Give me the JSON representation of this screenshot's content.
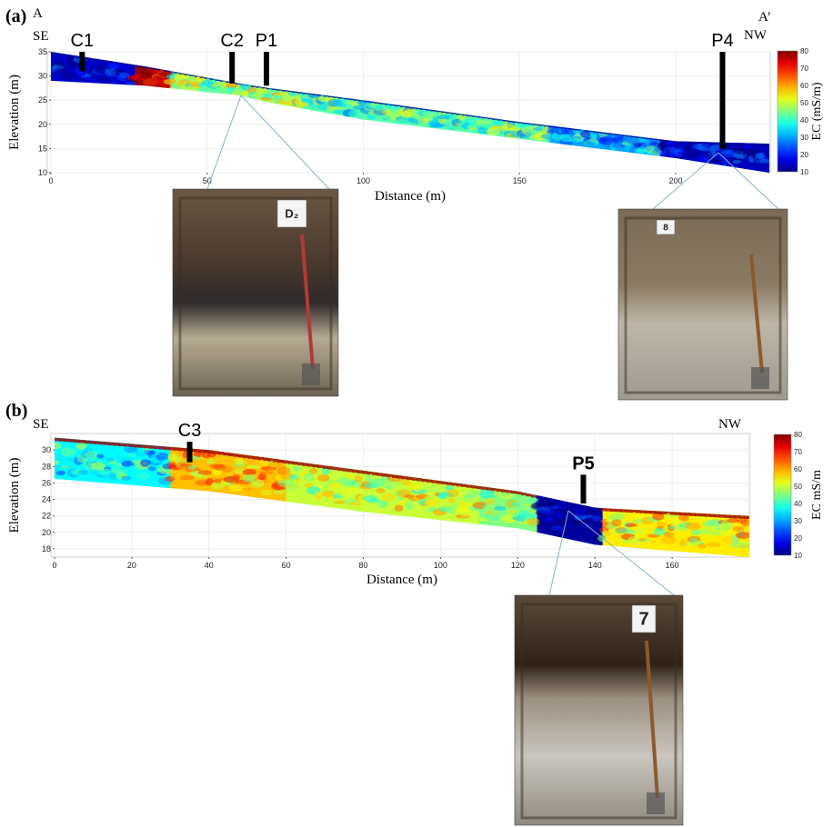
{
  "chart_data": [
    {
      "type": "heatmap",
      "panel_label": "(a)",
      "xlabel": "Distance (m)",
      "ylabel": "Elevation (m)",
      "xlim": [
        0,
        230
      ],
      "ylim": [
        10,
        35
      ],
      "xticks": [
        0,
        50,
        100,
        150,
        200
      ],
      "yticks": [
        10,
        15,
        20,
        25,
        30,
        35
      ],
      "direction_labels": {
        "start": "A",
        "start_dir": "SE",
        "end": "A’",
        "end_dir": "NW"
      },
      "surface_profile": {
        "x": [
          0,
          30,
          60,
          70,
          100,
          150,
          200,
          230
        ],
        "top": [
          35,
          32,
          28.5,
          27.5,
          25,
          20.5,
          16.5,
          16
        ],
        "bottom": [
          29,
          28,
          26,
          24.5,
          21,
          17,
          13,
          10
        ]
      },
      "colorbar": {
        "label": "EC (mS/m)",
        "min": 10,
        "max": 80,
        "ticks": [
          10,
          20,
          30,
          40,
          50,
          60,
          70,
          80
        ]
      },
      "markers": [
        {
          "label": "C1",
          "x": 10,
          "y_top": 35,
          "y_bottom": 31
        },
        {
          "label": "C2",
          "x": 58,
          "y_top": 35,
          "y_bottom": 28.5
        },
        {
          "label": "P1",
          "x": 69,
          "y_top": 35,
          "y_bottom": 28
        },
        {
          "label": "P4",
          "x": 215,
          "y_top": 35,
          "y_bottom": 15
        }
      ],
      "ec_zones": [
        {
          "x0": 0,
          "x1": 27,
          "value": 15
        },
        {
          "x0": 27,
          "x1": 38,
          "value": 78
        },
        {
          "x0": 38,
          "x1": 80,
          "value": 48
        },
        {
          "x0": 80,
          "x1": 160,
          "value": 42
        },
        {
          "x0": 160,
          "x1": 195,
          "value": 30
        },
        {
          "x0": 195,
          "x1": 230,
          "value": 14
        }
      ],
      "photos": [
        {
          "sign": "D₂"
        },
        {
          "sign": "8"
        }
      ]
    },
    {
      "type": "heatmap",
      "panel_label": "(b)",
      "xlabel": "Distance (m)",
      "ylabel": "Elevation (m)",
      "xlim": [
        0,
        180
      ],
      "ylim": [
        17,
        32
      ],
      "xticks": [
        0,
        20,
        40,
        60,
        80,
        100,
        120,
        140,
        160
      ],
      "yticks": [
        18,
        20,
        22,
        24,
        26,
        28,
        30
      ],
      "direction_labels": {
        "start_dir": "SE",
        "end_dir": "NW"
      },
      "surface_profile": {
        "x": [
          0,
          40,
          80,
          120,
          140,
          180
        ],
        "top": [
          31.5,
          30,
          27.5,
          25,
          23,
          22
        ],
        "bottom": [
          26.5,
          25,
          22.5,
          20.5,
          18.5,
          17
        ]
      },
      "colorbar": {
        "label": "EC mS/m",
        "min": 10,
        "max": 80,
        "ticks": [
          10,
          20,
          30,
          40,
          50,
          60,
          70,
          80
        ]
      },
      "markers": [
        {
          "label": "C3",
          "x": 35,
          "y_top": 31,
          "y_bottom": 28.5
        },
        {
          "label": "P5",
          "x": 137,
          "y_top": 27,
          "y_bottom": 23.5
        }
      ],
      "ec_zones": [
        {
          "x0": 0,
          "x1": 30,
          "value": 36
        },
        {
          "x0": 30,
          "x1": 60,
          "value": 58
        },
        {
          "x0": 60,
          "x1": 110,
          "value": 50
        },
        {
          "x0": 110,
          "x1": 125,
          "value": 45
        },
        {
          "x0": 125,
          "x1": 142,
          "value": 12
        },
        {
          "x0": 142,
          "x1": 180,
          "value": 55
        }
      ],
      "photos": [
        {
          "sign": "7"
        }
      ]
    }
  ]
}
